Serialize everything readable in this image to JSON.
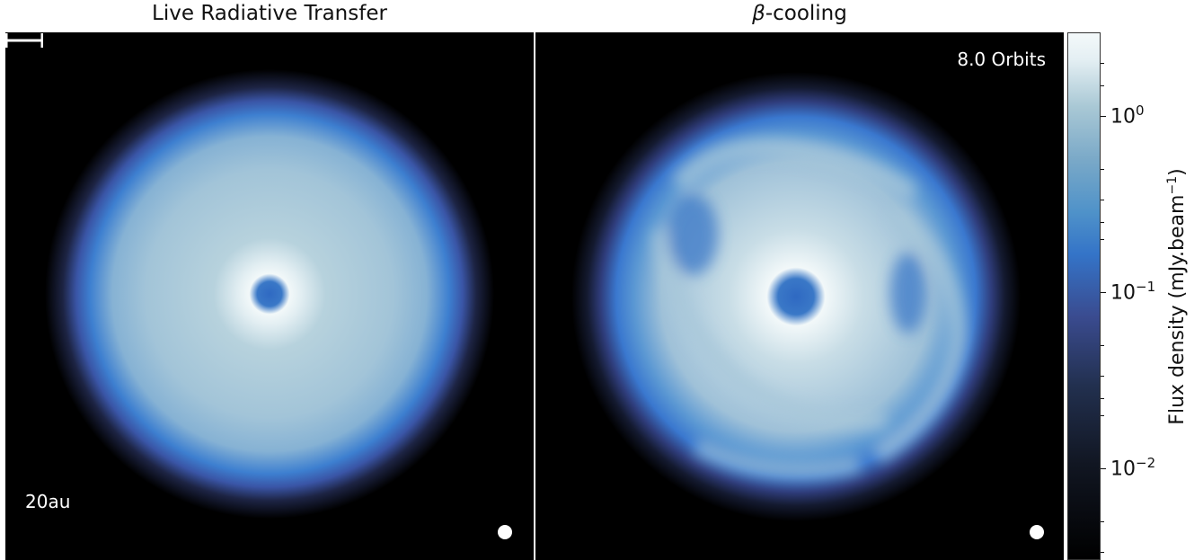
{
  "left_panel": {
    "title": "Live Radiative Transfer",
    "scale_label": "20au"
  },
  "right_panel": {
    "title_symbol": "β",
    "title_rest": "-cooling",
    "orbits_label": "8.0 Orbits"
  },
  "colorbar": {
    "label_main": "Flux density (mJy.beam",
    "label_sup": "−1",
    "label_close": ")",
    "ticks": [
      {
        "base": "10",
        "exp": "0"
      },
      {
        "base": "10",
        "exp": "−1"
      },
      {
        "base": "10",
        "exp": "−2"
      }
    ],
    "scale": "log",
    "colors": [
      "#000000",
      "#22304f",
      "#3474c8",
      "#7aa9c8",
      "#f4f9fa"
    ]
  }
}
